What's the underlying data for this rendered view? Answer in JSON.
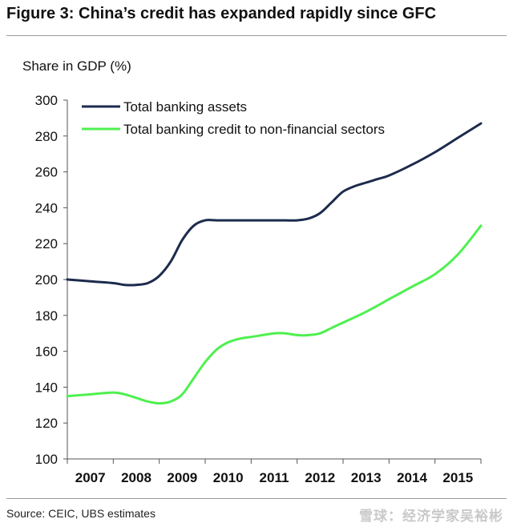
{
  "header": {
    "title": "Figure 3: China’s credit has expanded rapidly since GFC"
  },
  "footer": {
    "source": "Source:  CEIC, UBS estimates",
    "watermark": "雪球：经济学家吴裕彬"
  },
  "colors": {
    "series_1": "#1c2b4c",
    "series_2": "#4ef04e"
  },
  "chart_data": {
    "type": "line",
    "title": "Figure 3: China’s credit has expanded rapidly since GFC",
    "ylabel": "Share in GDP (%)",
    "xlabel": "",
    "ylim": [
      100,
      300
    ],
    "yticks": [
      100,
      120,
      140,
      160,
      180,
      200,
      220,
      240,
      260,
      280,
      300
    ],
    "categories": [
      "2007",
      "2008",
      "2009",
      "2010",
      "2011",
      "2012",
      "2013",
      "2014",
      "2015"
    ],
    "grid": false,
    "legend": "top-left",
    "series": [
      {
        "name": "Total banking assets",
        "color": "#1c2b4c",
        "x": [
          2006.0,
          2006.5,
          2007.0,
          2007.25,
          2007.5,
          2007.75,
          2008.0,
          2008.25,
          2008.5,
          2008.75,
          2009.0,
          2009.25,
          2009.5,
          2009.75,
          2010.0,
          2010.25,
          2010.5,
          2010.75,
          2011.0,
          2011.25,
          2011.5,
          2011.75,
          2012.0,
          2012.25,
          2012.5,
          2012.75,
          2013.0,
          2013.5,
          2014.0,
          2014.5,
          2015.0
        ],
        "values": [
          200,
          199,
          198,
          197,
          197,
          198,
          202,
          210,
          222,
          230,
          233,
          233,
          233,
          233,
          233,
          233,
          233,
          233,
          233,
          234,
          237,
          243,
          249,
          252,
          254,
          256,
          258,
          264,
          271,
          279,
          287
        ]
      },
      {
        "name": "Total banking credit to non-financial sectors",
        "color": "#4ef04e",
        "x": [
          2006.0,
          2006.5,
          2007.0,
          2007.25,
          2007.5,
          2007.75,
          2008.0,
          2008.25,
          2008.5,
          2008.75,
          2009.0,
          2009.25,
          2009.5,
          2009.75,
          2010.0,
          2010.25,
          2010.5,
          2010.75,
          2011.0,
          2011.25,
          2011.5,
          2011.75,
          2012.0,
          2012.5,
          2013.0,
          2013.5,
          2014.0,
          2014.5,
          2015.0
        ],
        "values": [
          135,
          136,
          137,
          136,
          134,
          132,
          131,
          132,
          136,
          145,
          154,
          161,
          165,
          167,
          168,
          169,
          170,
          170,
          169,
          169,
          170,
          173,
          176,
          182,
          189,
          196,
          203,
          214,
          230
        ]
      }
    ]
  }
}
